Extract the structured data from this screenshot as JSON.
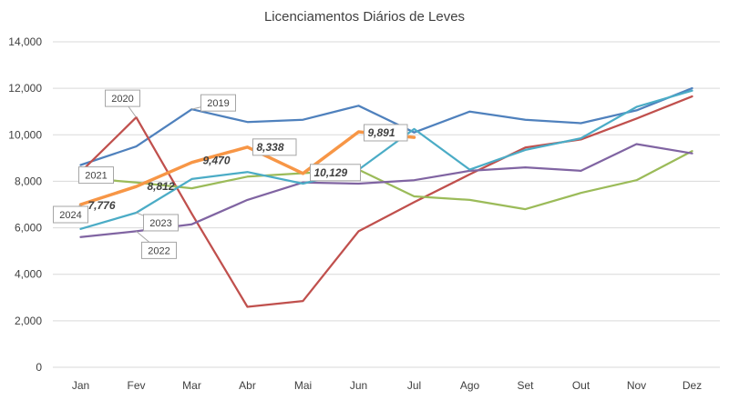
{
  "chart_data": {
    "type": "line",
    "title": "Licenciamentos Diários de Leves",
    "xlabel": "",
    "ylabel": "",
    "ylim": [
      0,
      14000
    ],
    "yticks": [
      "0",
      "2,000",
      "4,000",
      "6,000",
      "8,000",
      "10,000",
      "12,000",
      "14,000"
    ],
    "categories": [
      "Jan",
      "Fev",
      "Mar",
      "Abr",
      "Mai",
      "Jun",
      "Jul",
      "Ago",
      "Set",
      "Out",
      "Nov",
      "Dez"
    ],
    "grid": true,
    "series": [
      {
        "name": "2019",
        "color": "#4f81bd",
        "values": [
          8700,
          9500,
          11100,
          10550,
          10650,
          11250,
          10100,
          11000,
          10650,
          10500,
          11050,
          12000
        ]
      },
      {
        "name": "2020",
        "color": "#c0504d",
        "values": [
          8400,
          10750,
          6600,
          2600,
          2850,
          5850,
          7100,
          8300,
          9450,
          9800,
          10700,
          11650
        ]
      },
      {
        "name": "2021",
        "color": "#9bbb59",
        "values": [
          8150,
          7950,
          7700,
          8200,
          8350,
          8500,
          7350,
          7200,
          6800,
          7500,
          8050,
          9300
        ]
      },
      {
        "name": "2022",
        "color": "#8064a2",
        "values": [
          5600,
          5850,
          6150,
          7200,
          7950,
          7900,
          8050,
          8450,
          8600,
          8450,
          9600,
          9200
        ]
      },
      {
        "name": "2023",
        "color": "#4bacc6",
        "values": [
          5950,
          6650,
          8100,
          8400,
          7900,
          8500,
          10250,
          8500,
          9350,
          9850,
          11200,
          11900
        ]
      },
      {
        "name": "2024",
        "color": "#f79646",
        "values": [
          7000,
          7776,
          8812,
          9470,
          8338,
          10129,
          9891,
          null,
          null,
          null,
          null,
          null
        ]
      }
    ],
    "data_labels_2024": [
      "7,776",
      "8,812",
      "9,470",
      "8,338",
      "10,129",
      "9,891"
    ]
  }
}
